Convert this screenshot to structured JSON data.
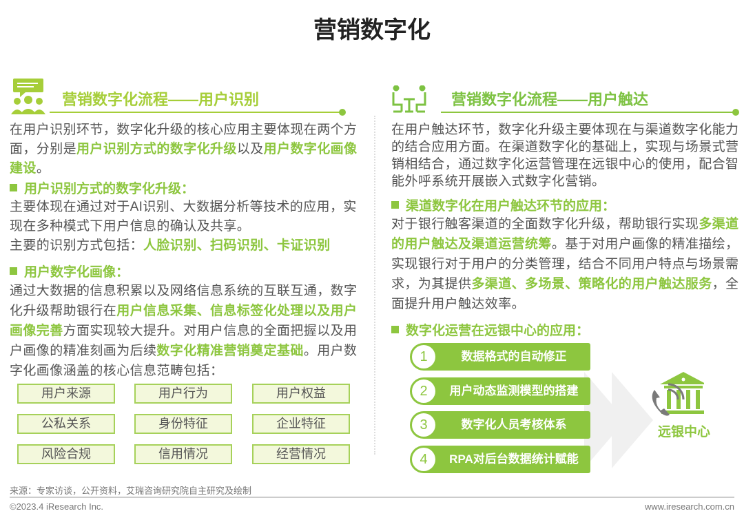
{
  "title": "营销数字化",
  "left": {
    "header": "营销数字化流程——用户识别",
    "icon": "users-chat-icon",
    "intro": [
      {
        "t": "在用户识别环节，数字化升级的核心应用主要体现在两个方面，分别是"
      },
      {
        "t": "用户识别方式的数字化升级",
        "h": 1
      },
      {
        "t": "以及"
      },
      {
        "t": "用户数字化画像建设",
        "h": 1
      },
      {
        "t": "。"
      }
    ],
    "bullet1": "用户识别方式的数字化升级：",
    "p1": [
      {
        "t": "主要体现在通过对于AI识别、大数据分析等技术的应用，实现在多种模式下用户信息的确认及共享。"
      }
    ],
    "p1b": [
      {
        "t": "主要的识别方式包括："
      },
      {
        "t": "人脸识别、扫码识别、卡证识别",
        "h": 1
      }
    ],
    "bullet2": "用户数字化画像：",
    "p2": [
      {
        "t": "通过大数据的信息积累以及网络信息系统的互联互通，数字化升级帮助银行在"
      },
      {
        "t": "用户信息采集、信息标签化处理以及用户画像完善",
        "h": 1
      },
      {
        "t": "方面实现较大提升。对用户信息的全面把握以及用户画像的精准刻画为后续"
      },
      {
        "t": "数字化精准营销奠定基础",
        "h": 1
      },
      {
        "t": "。用户数字化画像涵盖的核心信息范畴包括："
      }
    ],
    "tags": [
      "用户来源",
      "用户行为",
      "用户权益",
      "公私关系",
      "身份特征",
      "企业特征",
      "风险合规",
      "信用情况",
      "经营情况"
    ]
  },
  "right": {
    "header": "营销数字化流程——用户触达",
    "icon": "people-at-desk-icon",
    "intro": [
      {
        "t": "在用户触达环节，数字化升级主要体现在与渠道数字化能力的结合应用方面。在渠道数字化的基础上，实现与场景式营销相结合，通过数字化运营管理在远银中心的使用，配合智能外呼系统开展嵌入式数字化营销。"
      }
    ],
    "bullet1": "渠道数字化在用户触达环节的应用：",
    "p1": [
      {
        "t": "对于银行触客渠道的全面数字化升级，帮助银行实现"
      },
      {
        "t": "多渠道的用户触达及渠道运营统筹",
        "h": 1
      },
      {
        "t": "。基于对用户画像的精准描绘，实现银行对于用户的分类管理，结合不同用户特点与场景需求，为其提供"
      },
      {
        "t": "多渠道、多场景、策略化的用户触达服务",
        "h": 1
      },
      {
        "t": "，全面提升用户触达效率。"
      }
    ],
    "bullet2": "数字化运营在远银中心的应用：",
    "steps": [
      {
        "n": "1",
        "t": "数据格式的自动修正"
      },
      {
        "n": "2",
        "t": "用户动态监测模型的搭建"
      },
      {
        "n": "3",
        "t": "数字化人员考核体系"
      },
      {
        "n": "4",
        "t": "RPA对后台数据统计赋能"
      }
    ],
    "center_label": "远银中心",
    "center_icon": "bank-phone-icon"
  },
  "source": "来源：专家访谈，公开资料，艾瑞咨询研究院自主研究及绘制",
  "copyright": "©2023.4 iResearch Inc.",
  "website": "www.iresearch.com.cn",
  "colors": {
    "accent": "#8dc63f",
    "text": "#555555"
  }
}
